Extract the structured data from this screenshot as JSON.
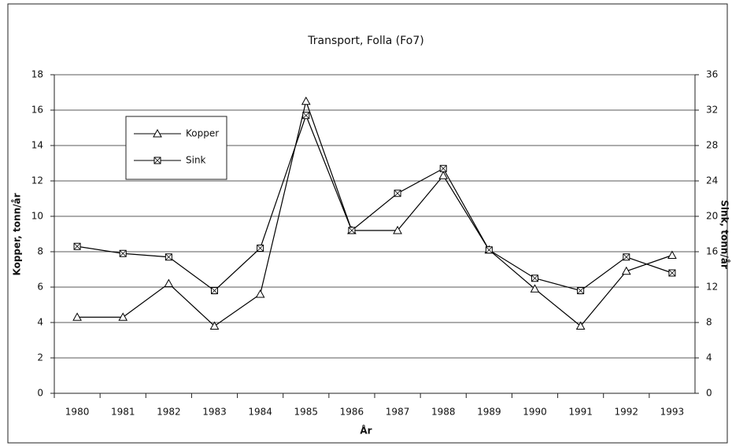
{
  "chart_data": {
    "type": "line",
    "title": "Transport, Folla (Fo7)",
    "xlabel": "År",
    "ylabel": "Kopper, tonn/år",
    "y2label": "Sink, tonn/år",
    "categories": [
      "1980",
      "1981",
      "1982",
      "1983",
      "1984",
      "1985",
      "1986",
      "1987",
      "1988",
      "1989",
      "1990",
      "1991",
      "1992",
      "1993"
    ],
    "series": [
      {
        "name": "Kopper",
        "color": "#000000",
        "marker": "triangle",
        "values": [
          4.3,
          4.3,
          6.2,
          3.8,
          5.6,
          16.5,
          9.2,
          9.2,
          12.3,
          8.1,
          5.9,
          3.8,
          6.9,
          7.8
        ]
      },
      {
        "name": "Sink",
        "color": "#000000",
        "marker": "square",
        "axis": "y2",
        "values": [
          16.6,
          15.8,
          15.4,
          11.6,
          16.4,
          31.4,
          18.4,
          22.6,
          25.4,
          16.2,
          13,
          11.6,
          15.4,
          13.6
        ]
      }
    ],
    "ylim": [
      0,
      18
    ],
    "yticks": [
      0,
      2,
      4,
      6,
      8,
      10,
      12,
      14,
      16,
      18
    ],
    "y2lim": [
      0,
      36
    ],
    "y2ticks": [
      0,
      4,
      8,
      12,
      16,
      20,
      24,
      28,
      32,
      36
    ],
    "grid": true,
    "legend": "upper left"
  }
}
